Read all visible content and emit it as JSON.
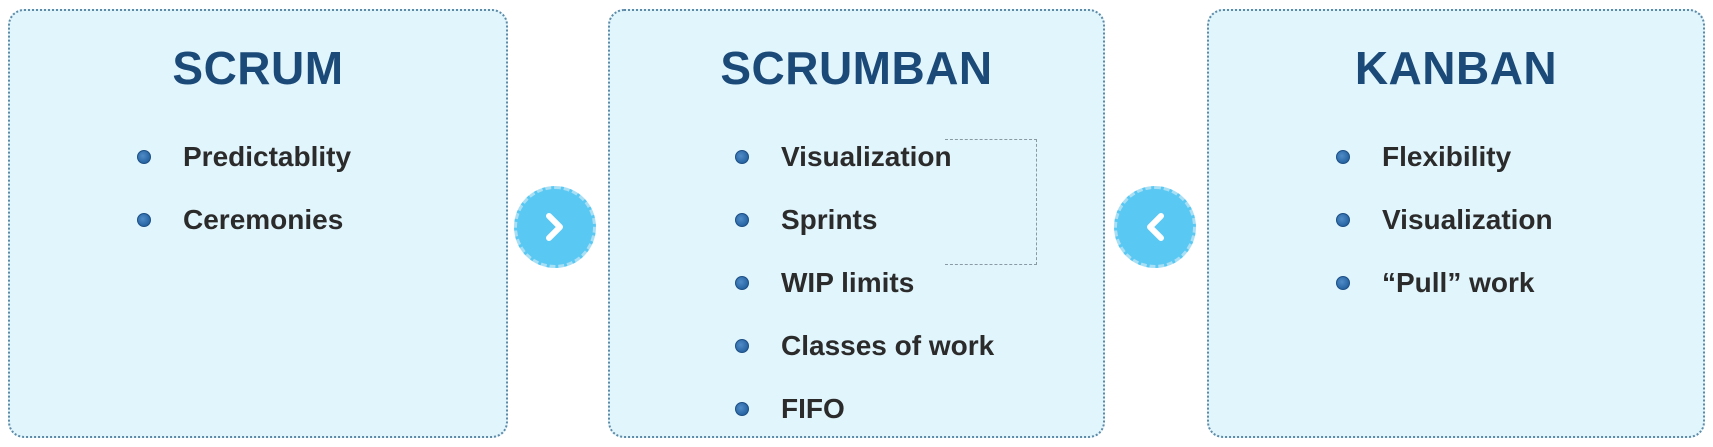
{
  "panels": {
    "scrum": {
      "title": "SCRUM",
      "items": [
        "Predictablity",
        "Ceremonies"
      ]
    },
    "scrumban": {
      "title": "SCRUMBAN",
      "items": [
        "Visualization",
        "Sprints",
        "WIP limits",
        "Classes of work",
        "FIFO"
      ]
    },
    "kanban": {
      "title": "KANBAN",
      "items": [
        "Flexibility",
        "Visualization",
        "“Pull” work"
      ]
    }
  },
  "arrows": {
    "right_icon": "chevron-right-icon",
    "left_icon": "chevron-left-icon"
  },
  "colors": {
    "panel_background": "#e1f5fc",
    "title": "#1b4a78",
    "arrow_circle": "#59c8f3",
    "bullet": "#2d6aa8"
  }
}
